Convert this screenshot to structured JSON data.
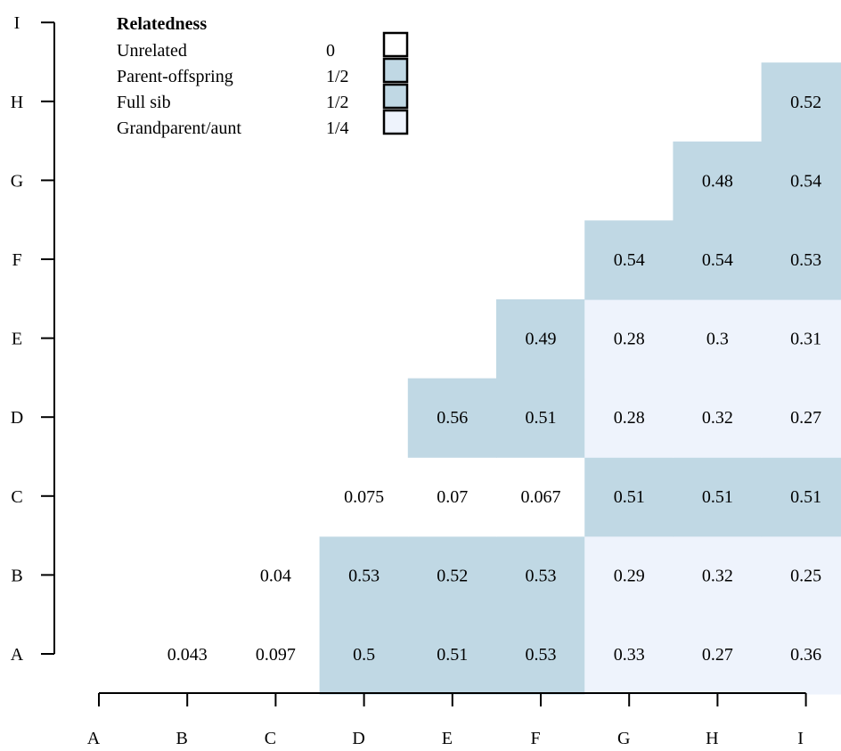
{
  "chart_data": {
    "type": "heatmap",
    "x_categories": [
      "A",
      "B",
      "C",
      "D",
      "E",
      "F",
      "G",
      "H",
      "I"
    ],
    "y_categories": [
      "A",
      "B",
      "C",
      "D",
      "E",
      "F",
      "G",
      "H",
      "I"
    ],
    "colors": {
      "unrelated": "#ffffff",
      "parent_offspring": "#c0d8e4",
      "full_sib": "#c0d8e4",
      "grandparent_aunt": "#eef3fc"
    },
    "legend": {
      "title": "Relatedness",
      "items": [
        {
          "label": "Unrelated",
          "value": "0",
          "class": "unrelated"
        },
        {
          "label": "Parent-offspring",
          "value": "1/2",
          "class": "parent_offspring"
        },
        {
          "label": "Full sib",
          "value": "1/2",
          "class": "full_sib"
        },
        {
          "label": "Grandparent/aunt",
          "value": "1/4",
          "class": "grandparent_aunt"
        }
      ]
    },
    "cells": [
      {
        "row": "A",
        "col": "B",
        "value": "0.043",
        "class": "unrelated"
      },
      {
        "row": "A",
        "col": "C",
        "value": "0.097",
        "class": "unrelated"
      },
      {
        "row": "A",
        "col": "D",
        "value": "0.5",
        "class": "parent_offspring"
      },
      {
        "row": "A",
        "col": "E",
        "value": "0.51",
        "class": "parent_offspring"
      },
      {
        "row": "A",
        "col": "F",
        "value": "0.53",
        "class": "parent_offspring"
      },
      {
        "row": "A",
        "col": "G",
        "value": "0.33",
        "class": "grandparent_aunt"
      },
      {
        "row": "A",
        "col": "H",
        "value": "0.27",
        "class": "grandparent_aunt"
      },
      {
        "row": "A",
        "col": "I",
        "value": "0.36",
        "class": "grandparent_aunt"
      },
      {
        "row": "B",
        "col": "C",
        "value": "0.04",
        "class": "unrelated"
      },
      {
        "row": "B",
        "col": "D",
        "value": "0.53",
        "class": "parent_offspring"
      },
      {
        "row": "B",
        "col": "E",
        "value": "0.52",
        "class": "parent_offspring"
      },
      {
        "row": "B",
        "col": "F",
        "value": "0.53",
        "class": "parent_offspring"
      },
      {
        "row": "B",
        "col": "G",
        "value": "0.29",
        "class": "grandparent_aunt"
      },
      {
        "row": "B",
        "col": "H",
        "value": "0.32",
        "class": "grandparent_aunt"
      },
      {
        "row": "B",
        "col": "I",
        "value": "0.25",
        "class": "grandparent_aunt"
      },
      {
        "row": "C",
        "col": "D",
        "value": "0.075",
        "class": "unrelated"
      },
      {
        "row": "C",
        "col": "E",
        "value": "0.07",
        "class": "unrelated"
      },
      {
        "row": "C",
        "col": "F",
        "value": "0.067",
        "class": "unrelated"
      },
      {
        "row": "C",
        "col": "G",
        "value": "0.51",
        "class": "parent_offspring"
      },
      {
        "row": "C",
        "col": "H",
        "value": "0.51",
        "class": "parent_offspring"
      },
      {
        "row": "C",
        "col": "I",
        "value": "0.51",
        "class": "parent_offspring"
      },
      {
        "row": "D",
        "col": "E",
        "value": "0.56",
        "class": "full_sib"
      },
      {
        "row": "D",
        "col": "F",
        "value": "0.51",
        "class": "full_sib"
      },
      {
        "row": "D",
        "col": "G",
        "value": "0.28",
        "class": "grandparent_aunt"
      },
      {
        "row": "D",
        "col": "H",
        "value": "0.32",
        "class": "grandparent_aunt"
      },
      {
        "row": "D",
        "col": "I",
        "value": "0.27",
        "class": "grandparent_aunt"
      },
      {
        "row": "E",
        "col": "F",
        "value": "0.49",
        "class": "full_sib"
      },
      {
        "row": "E",
        "col": "G",
        "value": "0.28",
        "class": "grandparent_aunt"
      },
      {
        "row": "E",
        "col": "H",
        "value": "0.3",
        "class": "grandparent_aunt"
      },
      {
        "row": "E",
        "col": "I",
        "value": "0.31",
        "class": "grandparent_aunt"
      },
      {
        "row": "F",
        "col": "G",
        "value": "0.54",
        "class": "full_sib"
      },
      {
        "row": "F",
        "col": "H",
        "value": "0.54",
        "class": "full_sib"
      },
      {
        "row": "F",
        "col": "I",
        "value": "0.53",
        "class": "full_sib"
      },
      {
        "row": "G",
        "col": "H",
        "value": "0.48",
        "class": "full_sib"
      },
      {
        "row": "G",
        "col": "I",
        "value": "0.54",
        "class": "full_sib"
      },
      {
        "row": "H",
        "col": "I",
        "value": "0.52",
        "class": "full_sib"
      }
    ],
    "grid": false,
    "legend_position": "top-left"
  }
}
